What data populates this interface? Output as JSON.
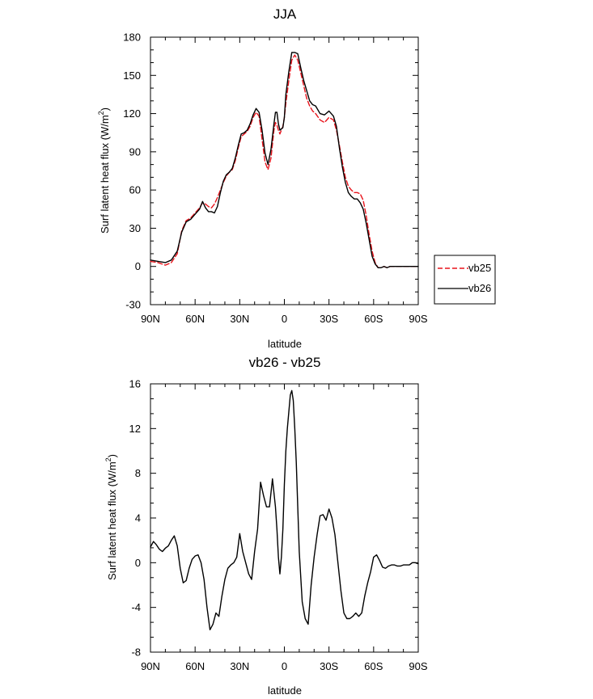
{
  "chart_data": [
    {
      "type": "line",
      "title": "JJA",
      "xlabel": "latitude",
      "ylabel": "Surf latent heat flux (W/m",
      "ylabel_sup": "2",
      "ylabel_tail": ")",
      "xlim": [
        90,
        -90
      ],
      "ylim": [
        -30,
        180
      ],
      "xticks": [
        90,
        60,
        30,
        0,
        -30,
        -60,
        -90
      ],
      "xtick_labels": [
        "90N",
        "60N",
        "30N",
        "0",
        "30S",
        "60S",
        "90S"
      ],
      "yticks": [
        -30,
        0,
        30,
        60,
        90,
        120,
        150,
        180
      ],
      "ytick_labels": [
        "-30",
        "0",
        "30",
        "60",
        "90",
        "120",
        "150",
        "180"
      ],
      "legend_position": "right",
      "series": [
        {
          "name": "vb25",
          "color": "#e8141c",
          "dash": "dashed",
          "x": [
            90,
            85,
            80,
            76,
            72,
            69,
            66,
            63,
            60,
            57,
            55,
            53,
            51,
            49,
            47,
            45,
            43,
            41,
            39,
            37,
            35,
            33,
            31,
            29,
            27,
            25,
            23,
            21,
            19,
            17,
            15,
            13,
            11,
            9,
            7,
            6,
            5,
            4,
            3,
            1,
            0,
            -1,
            -3,
            -5,
            -7,
            -9,
            -11,
            -13,
            -15,
            -17,
            -19,
            -21,
            -24,
            -27,
            -30,
            -33,
            -35,
            -37,
            -39,
            -41,
            -43,
            -45,
            -47,
            -49,
            -51,
            -53,
            -55,
            -57,
            -59,
            -61,
            -63,
            -65,
            -67,
            -69,
            -71,
            -73,
            -75,
            -78,
            -81,
            -84,
            -87,
            -90
          ],
          "values": [
            4,
            3,
            1,
            3,
            10,
            28,
            36,
            38,
            42,
            46,
            50,
            49,
            47,
            46,
            49,
            54,
            60,
            66,
            71,
            74,
            76,
            83,
            93,
            102,
            104,
            106,
            110,
            117,
            121,
            118,
            100,
            82,
            76,
            85,
            107,
            113,
            111,
            107,
            104,
            110,
            117,
            128,
            146,
            162,
            166,
            162,
            152,
            142,
            132,
            126,
            122,
            120,
            115,
            113,
            117,
            115,
            107,
            95,
            82,
            70,
            63,
            60,
            58,
            58,
            57,
            52,
            40,
            25,
            12,
            3,
            -1,
            -1,
            0,
            -1,
            0,
            0,
            0,
            0,
            0,
            0,
            0,
            0
          ]
        },
        {
          "name": "vb26",
          "color": "#000000",
          "dash": "solid",
          "x": [
            90,
            85,
            80,
            76,
            72,
            69,
            66,
            63,
            60,
            57,
            55,
            53,
            51,
            49,
            47,
            45,
            43,
            41,
            39,
            37,
            35,
            33,
            31,
            29,
            27,
            25,
            23,
            21,
            19,
            17,
            15,
            13,
            11,
            9,
            7,
            6,
            5,
            4,
            3,
            1,
            0,
            -1,
            -3,
            -5,
            -7,
            -9,
            -11,
            -13,
            -15,
            -17,
            -19,
            -21,
            -24,
            -27,
            -30,
            -33,
            -35,
            -37,
            -39,
            -41,
            -43,
            -45,
            -47,
            -49,
            -51,
            -53,
            -55,
            -57,
            -59,
            -61,
            -63,
            -65,
            -67,
            -69,
            -71,
            -73,
            -75,
            -78,
            -81,
            -84,
            -87,
            -90
          ],
          "values": [
            5,
            4,
            3,
            5,
            12,
            27,
            35,
            37,
            41,
            45,
            51,
            46,
            43,
            43,
            42,
            47,
            58,
            67,
            72,
            74,
            77,
            85,
            95,
            104,
            105,
            107,
            112,
            119,
            124,
            121,
            107,
            89,
            80,
            92,
            112,
            121,
            121,
            112,
            107,
            109,
            117,
            135,
            153,
            168,
            168,
            167,
            156,
            146,
            138,
            130,
            127,
            126,
            120,
            119,
            122,
            118,
            110,
            93,
            78,
            66,
            58,
            55,
            53,
            53,
            50,
            45,
            34,
            21,
            8,
            2,
            -1,
            -1,
            0,
            -1,
            0,
            0,
            0,
            0,
            0,
            0,
            0,
            0
          ]
        }
      ]
    },
    {
      "type": "line",
      "title": "vb26 - vb25",
      "xlabel": "latitude",
      "ylabel": "Surf latent heat flux (W/m",
      "ylabel_sup": "2",
      "ylabel_tail": ")",
      "xlim": [
        90,
        -90
      ],
      "ylim": [
        -8,
        16
      ],
      "xticks": [
        90,
        60,
        30,
        0,
        -30,
        -60,
        -90
      ],
      "xtick_labels": [
        "90N",
        "60N",
        "30N",
        "0",
        "30S",
        "60S",
        "90S"
      ],
      "yticks": [
        -8,
        -4,
        0,
        4,
        8,
        12,
        16
      ],
      "ytick_labels": [
        "-8",
        "-4",
        "0",
        "4",
        "8",
        "12",
        "16"
      ],
      "series": [
        {
          "name": "vb26 - vb25",
          "color": "#000000",
          "dash": "solid",
          "x": [
            90,
            88,
            86,
            84,
            82,
            80,
            78,
            76,
            74,
            72,
            70,
            68,
            66,
            64,
            62,
            60,
            58,
            56,
            54,
            52,
            50,
            48,
            46,
            44,
            42,
            40,
            38,
            36,
            34,
            32,
            30,
            28,
            26,
            24,
            22,
            20,
            18,
            16,
            14,
            12,
            10,
            8,
            6,
            5,
            4,
            3,
            2,
            1,
            0,
            -1,
            -2,
            -3,
            -4,
            -5,
            -6,
            -7,
            -8,
            -9,
            -10,
            -12,
            -14,
            -16,
            -18,
            -20,
            -22,
            -24,
            -26,
            -28,
            -30,
            -32,
            -34,
            -36,
            -38,
            -40,
            -42,
            -44,
            -46,
            -48,
            -50,
            -52,
            -54,
            -56,
            -58,
            -60,
            -62,
            -64,
            -66,
            -68,
            -70,
            -72,
            -74,
            -76,
            -78,
            -80,
            -82,
            -84,
            -86,
            -88,
            -90
          ],
          "values": [
            1.4,
            1.9,
            1.6,
            1.2,
            1.0,
            1.3,
            1.5,
            2.0,
            2.4,
            1.5,
            -0.5,
            -1.8,
            -1.6,
            -0.5,
            0.3,
            0.6,
            0.7,
            0.0,
            -1.5,
            -4.0,
            -6.0,
            -5.5,
            -4.5,
            -4.8,
            -3.0,
            -1.5,
            -0.5,
            -0.2,
            0.0,
            0.5,
            2.6,
            1.0,
            0.0,
            -1.0,
            -1.5,
            1.0,
            3.0,
            7.2,
            6.0,
            5.0,
            5.0,
            7.5,
            5.0,
            3.0,
            0.5,
            -1.0,
            0.5,
            3.0,
            7.0,
            10.0,
            12.0,
            13.5,
            15.0,
            15.4,
            14.5,
            12.0,
            9.0,
            5.0,
            1.0,
            -3.5,
            -5.0,
            -5.5,
            -2.0,
            0.5,
            2.5,
            4.2,
            4.3,
            3.8,
            4.8,
            4.0,
            2.5,
            0.0,
            -2.5,
            -4.5,
            -5.0,
            -5.0,
            -4.8,
            -4.5,
            -4.8,
            -4.5,
            -3.0,
            -1.8,
            -0.8,
            0.5,
            0.7,
            0.2,
            -0.4,
            -0.5,
            -0.3,
            -0.2,
            -0.2,
            -0.3,
            -0.3,
            -0.2,
            -0.2,
            -0.2,
            0.0,
            0.0,
            -0.1
          ]
        }
      ]
    }
  ]
}
